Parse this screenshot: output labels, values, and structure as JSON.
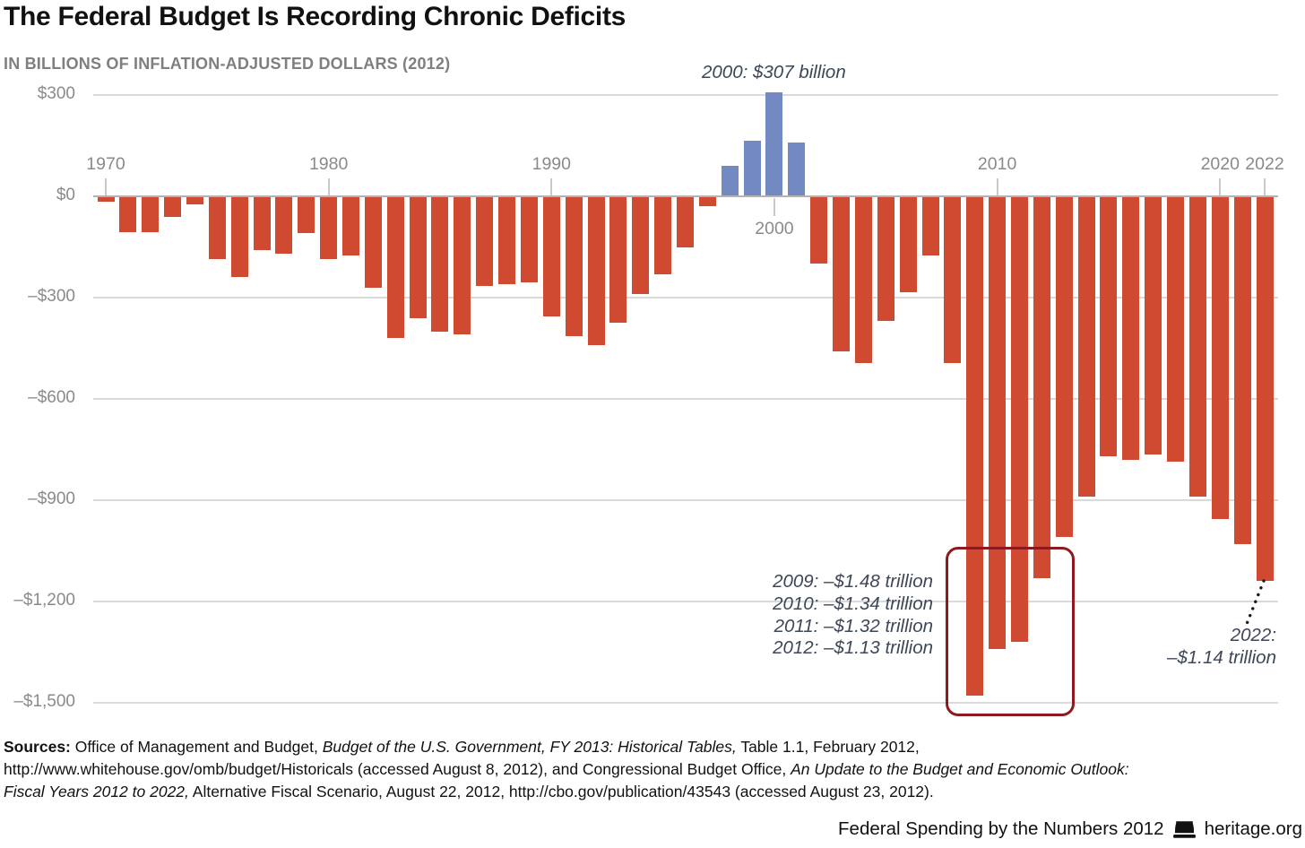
{
  "title": "The Federal Budget Is Recording Chronic Deficits",
  "subtitle": "IN BILLIONS OF INFLATION-ADJUSTED DOLLARS (2012)",
  "colors": {
    "deficit_bar": "#cf4a31",
    "surplus_bar": "#7289c1",
    "highlight_box_border": "#8e1a1f",
    "gridline": "#dadada",
    "zero_line": "#b3b3b3",
    "axis_text": "#8a8a8a",
    "annotation_text": "#3d4757",
    "body_text": "#111111"
  },
  "chart_data": {
    "type": "bar",
    "title": "The Federal Budget Is Recording Chronic Deficits",
    "ylabel": "Billions of inflation-adjusted dollars (2012)",
    "ylim": [
      -1500,
      300
    ],
    "grid": "horizontal",
    "legend": "none",
    "years": [
      1970,
      1971,
      1972,
      1973,
      1974,
      1975,
      1976,
      1977,
      1978,
      1979,
      1980,
      1981,
      1982,
      1983,
      1984,
      1985,
      1986,
      1987,
      1988,
      1989,
      1990,
      1991,
      1992,
      1993,
      1994,
      1995,
      1996,
      1997,
      1998,
      1999,
      2000,
      2001,
      2002,
      2003,
      2004,
      2005,
      2006,
      2007,
      2008,
      2009,
      2010,
      2011,
      2012,
      2013,
      2014,
      2015,
      2016,
      2017,
      2018,
      2019,
      2020,
      2021,
      2022
    ],
    "values": [
      -15,
      -105,
      -105,
      -60,
      -25,
      -185,
      -240,
      -160,
      -170,
      -110,
      -185,
      -175,
      -270,
      -420,
      -360,
      -400,
      -410,
      -265,
      -260,
      -255,
      -355,
      -415,
      -440,
      -375,
      -290,
      -230,
      -150,
      -30,
      90,
      165,
      307,
      160,
      -200,
      -460,
      -495,
      -370,
      -285,
      -175,
      -495,
      -1480,
      -1340,
      -1320,
      -1130,
      -1010,
      -890,
      -770,
      -780,
      -765,
      -785,
      -890,
      -955,
      -1030,
      -1140
    ],
    "y_ticks": [
      {
        "label": "$300",
        "value": 300
      },
      {
        "label": "$0",
        "value": 0
      },
      {
        "label": "–$300",
        "value": -300
      },
      {
        "label": "–$600",
        "value": -600
      },
      {
        "label": "–$900",
        "value": -900
      },
      {
        "label": "–$1,200",
        "value": -1200
      },
      {
        "label": "–$1,500",
        "value": -1500
      }
    ],
    "x_ticks": [
      {
        "label": "1970",
        "year": 1970,
        "side": "above"
      },
      {
        "label": "1980",
        "year": 1980,
        "side": "above"
      },
      {
        "label": "1990",
        "year": 1990,
        "side": "above"
      },
      {
        "label": "2000",
        "year": 2000,
        "side": "below"
      },
      {
        "label": "2010",
        "year": 2010,
        "side": "above"
      },
      {
        "label": "2020",
        "year": 2020,
        "side": "above"
      },
      {
        "label": "2022",
        "year": 2022,
        "side": "above"
      }
    ]
  },
  "annotations": {
    "surplus_peak": "2000: $307 billion",
    "record_deficits": [
      "2009: –$1.48 trillion",
      "2010: –$1.34 trillion",
      "2011: –$1.32 trillion",
      "2012: –$1.13 trillion"
    ],
    "y2022_line1": "2022:",
    "y2022_line2": "–$1.14 trillion"
  },
  "sources": {
    "lines": [
      [
        {
          "t": "Sources: ",
          "b": true
        },
        {
          "t": "Office of Management and Budget, "
        },
        {
          "t": "Budget of the U.S. Government, FY 2013: Historical Tables,",
          "i": true
        },
        {
          "t": " Table 1.1, February 2012,"
        }
      ],
      [
        {
          "t": "http://www.whitehouse.gov/omb/budget/Historicals (accessed August 8, 2012), and Congressional Budget Office, "
        },
        {
          "t": "An Update to the Budget and Economic Outlook:",
          "i": true
        }
      ],
      [
        {
          "t": "Fiscal Years 2012 to 2022,",
          "i": true
        },
        {
          "t": " Alternative Fiscal Scenario, August 22, 2012, http://cbo.gov/publication/43543 (accessed August 23, 2012)."
        }
      ]
    ]
  },
  "footer": {
    "publication": "Federal Spending by the Numbers 2012",
    "site": "heritage.org",
    "bell_icon": "heritage-bell-icon"
  }
}
